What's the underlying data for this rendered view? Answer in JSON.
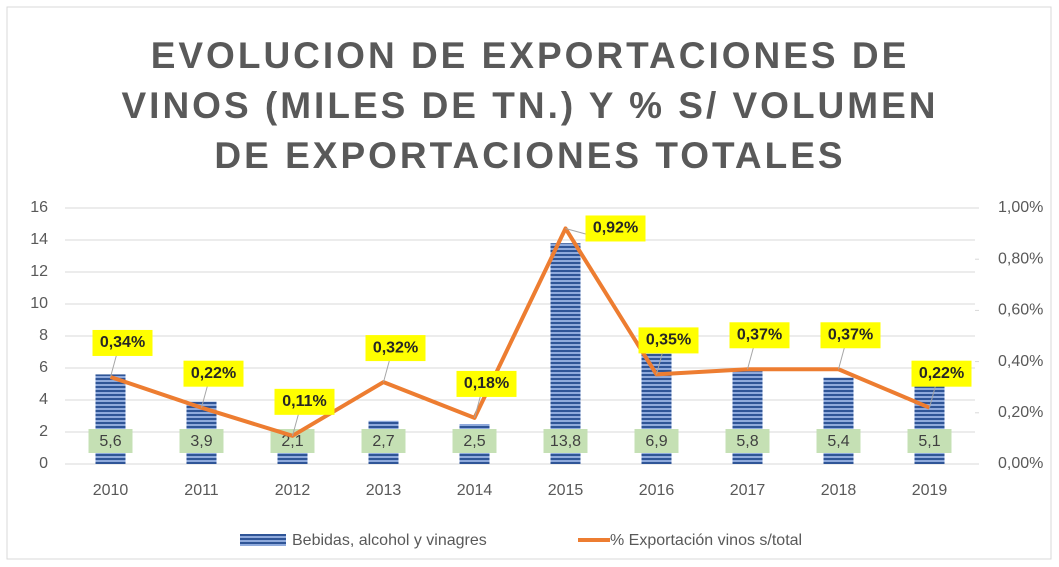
{
  "chart_data": {
    "type": "bar_line",
    "title": [
      "EVOLUCION DE EXPORTACIONES DE",
      "VINOS (MILES DE TN.) Y % S/ VOLUMEN",
      "DE EXPORTACIONES TOTALES"
    ],
    "categories": [
      "2010",
      "2011",
      "2012",
      "2013",
      "2014",
      "2015",
      "2016",
      "2017",
      "2018",
      "2019"
    ],
    "series": [
      {
        "name": "Bebidas, alcohol y vinagres",
        "type": "bar",
        "color": "#4472c4",
        "values": [
          5.6,
          3.9,
          2.1,
          2.7,
          2.5,
          13.8,
          6.9,
          5.8,
          5.4,
          5.1
        ],
        "value_labels": [
          "5,6",
          "3,9",
          "2,1",
          "2,7",
          "2,5",
          "13,8",
          "6,9",
          "5,8",
          "5,4",
          "5,1"
        ]
      },
      {
        "name": "% Exportación vinos s/total",
        "type": "line",
        "axis": "y2",
        "color": "#ed7d31",
        "values": [
          0.34,
          0.22,
          0.11,
          0.32,
          0.18,
          0.92,
          0.35,
          0.37,
          0.37,
          0.22
        ],
        "value_labels": [
          "0,34%",
          "0,22%",
          "0,11%",
          "0,32%",
          "0,18%",
          "0,92%",
          "0,35%",
          "0,37%",
          "0,37%",
          "0,22%"
        ]
      }
    ],
    "ylim": [
      0,
      16
    ],
    "yticks": [
      0,
      2,
      4,
      6,
      8,
      10,
      12,
      14,
      16
    ],
    "y2lim": [
      0,
      1
    ],
    "y2ticks": [
      {
        "value": 0,
        "label": "0,00%"
      },
      {
        "value": 0.2,
        "label": "0,20%"
      },
      {
        "value": 0.4,
        "label": "0,40%"
      },
      {
        "value": 0.6,
        "label": "0,60%"
      },
      {
        "value": 0.8,
        "label": "0,80%"
      },
      {
        "value": 1,
        "label": "1,00%"
      }
    ],
    "grid": true,
    "legend": "bottom"
  }
}
